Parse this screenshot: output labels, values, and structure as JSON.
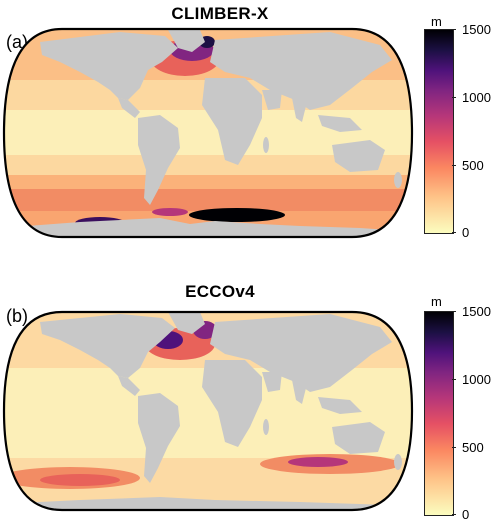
{
  "panels": [
    {
      "label": "(a)",
      "title": "CLIMBER-X",
      "colorbar": {
        "unit": "m",
        "ticks": [
          "1500",
          "1000",
          "500",
          "0"
        ]
      }
    },
    {
      "label": "(b)",
      "title": "ECCOv4",
      "colorbar": {
        "unit": "m",
        "ticks": [
          "1500",
          "1000",
          "500",
          "0"
        ]
      }
    }
  ],
  "colors": {
    "land": "#c8c8c8",
    "ocean_low": "#fcefb8",
    "ocean_mid": "#fbb27a",
    "ocean_high": "#e8625a",
    "ocean_deep": "#3b0f5e",
    "ocean_max": "#000004",
    "coastline_frame": "#000000"
  },
  "colormap": "magma (reversed)",
  "colorbar_range": [
    0,
    1500
  ]
}
